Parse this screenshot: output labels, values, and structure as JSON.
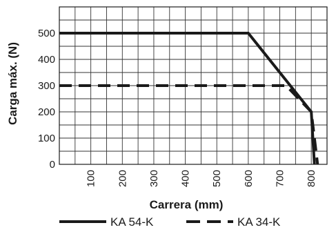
{
  "chart_data": {
    "type": "line",
    "xlabel": "Carrera (mm)",
    "ylabel": "Carga máx. (N)",
    "xlim": [
      0,
      850
    ],
    "ylim": [
      0,
      600
    ],
    "x_ticks": [
      100,
      200,
      300,
      400,
      500,
      600,
      700,
      800
    ],
    "y_ticks": [
      0,
      100,
      200,
      300,
      400,
      500
    ],
    "grid": true,
    "legend_position": "bottom",
    "series": [
      {
        "name": "KA 54-K",
        "style": "solid",
        "color": "#1a1a1a",
        "points": [
          [
            0,
            500
          ],
          [
            600,
            500
          ],
          [
            800,
            200
          ],
          [
            810,
            0
          ]
        ]
      },
      {
        "name": "KA 34-K",
        "style": "dashed",
        "color": "#1a1a1a",
        "points": [
          [
            0,
            300
          ],
          [
            720,
            300
          ],
          [
            800,
            200
          ],
          [
            820,
            0
          ]
        ]
      }
    ]
  }
}
